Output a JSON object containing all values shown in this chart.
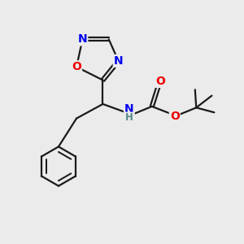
{
  "bg_color": "#ebebeb",
  "bond_color": "#1a1a1a",
  "N_color": "#0000ee",
  "O_color": "#ee0000",
  "H_color": "#558888",
  "line_width": 1.6,
  "figsize": [
    3.0,
    3.0
  ],
  "dpi": 100,
  "xlim": [
    0,
    10
  ],
  "ylim": [
    0,
    10
  ]
}
